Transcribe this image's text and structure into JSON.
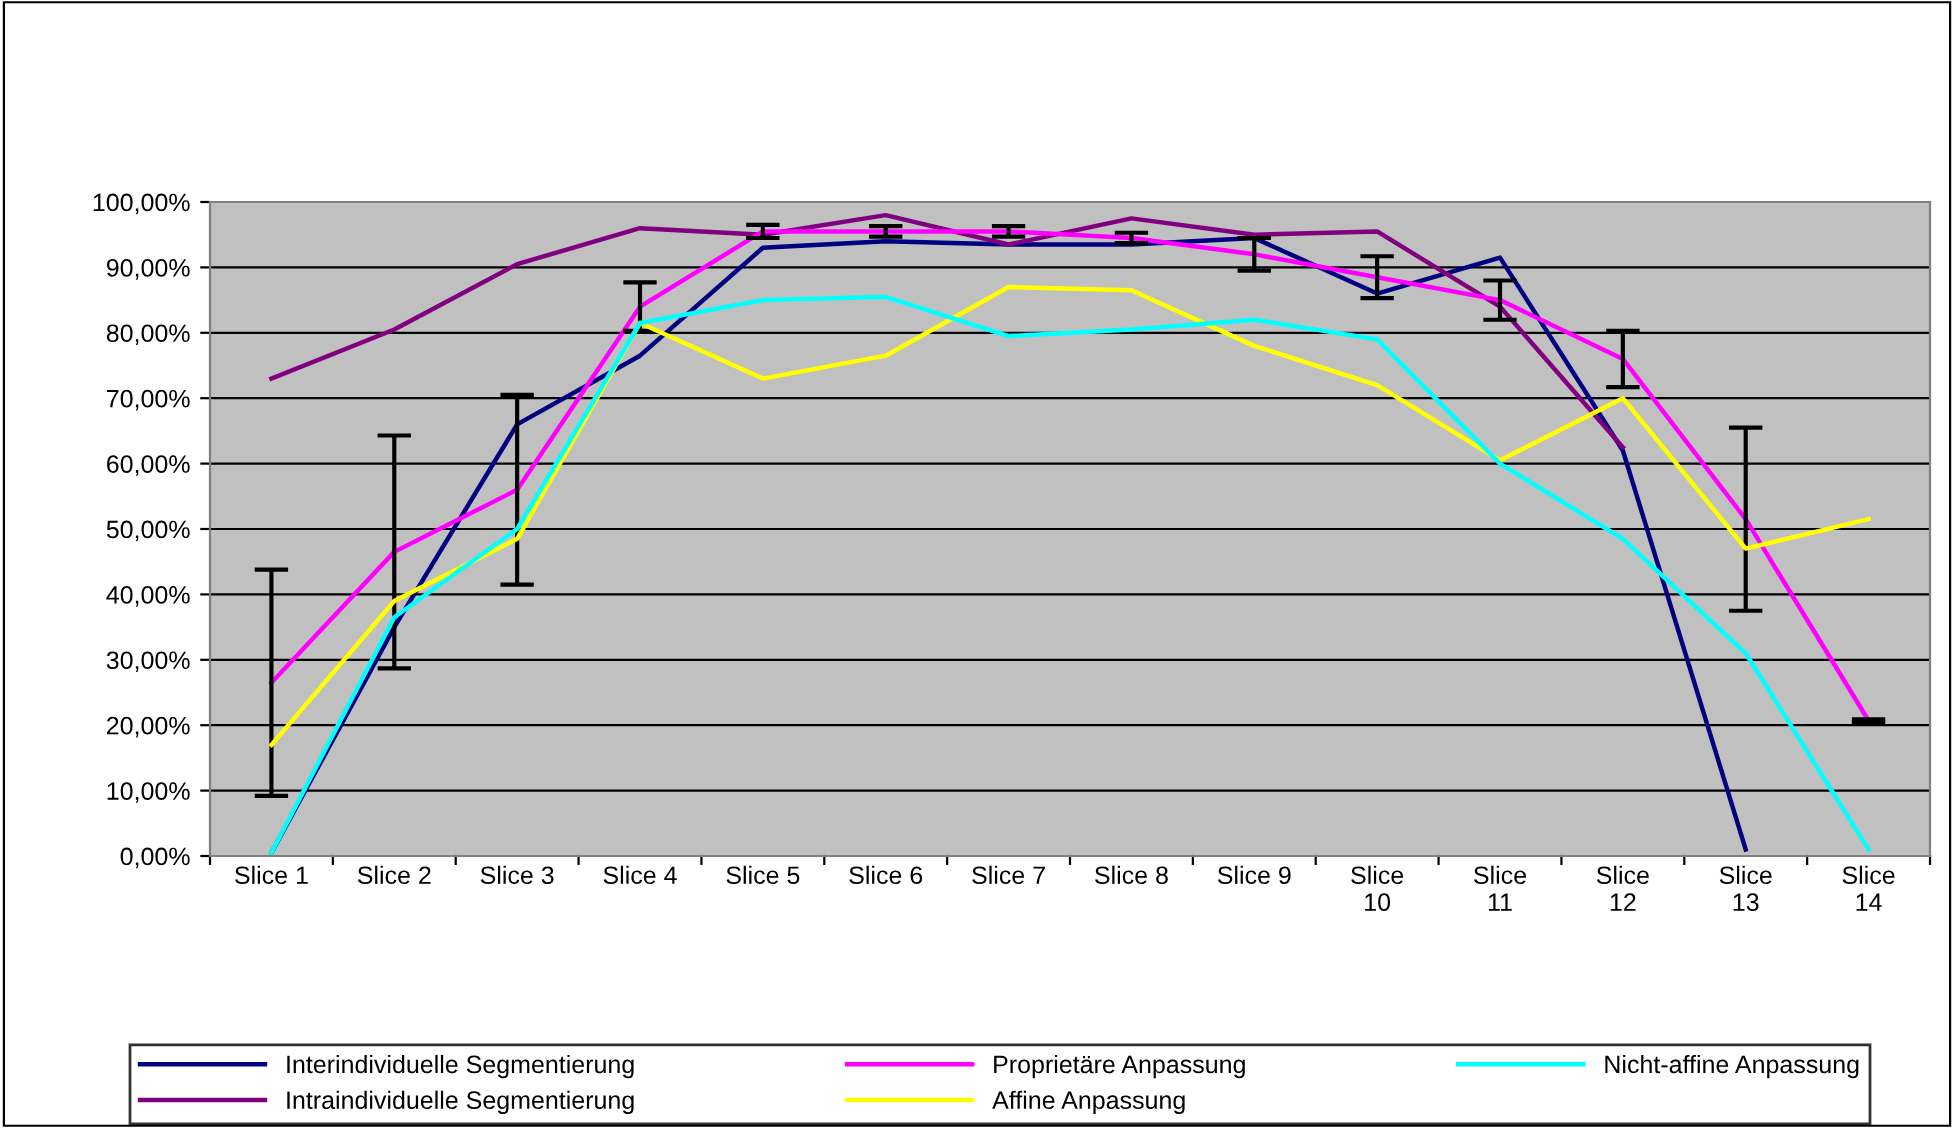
{
  "chart_data": {
    "type": "line",
    "categories": [
      "Slice 1",
      "Slice 2",
      "Slice 3",
      "Slice 4",
      "Slice 5",
      "Slice 6",
      "Slice 7",
      "Slice 8",
      "Slice 9",
      "Slice 10",
      "Slice 11",
      "Slice 12",
      "Slice 13",
      "Slice 14"
    ],
    "series": [
      {
        "name": "Interindividuelle Segmentierung",
        "color": "#000080",
        "values": [
          0.5,
          35,
          66,
          76.5,
          93,
          94,
          93.5,
          93.5,
          94.5,
          86,
          91.5,
          62,
          1,
          null
        ]
      },
      {
        "name": "Intraindividuelle Segmentierung",
        "color": "#800080",
        "values": [
          73,
          80.5,
          90.5,
          96,
          95,
          98,
          93.5,
          97.5,
          95,
          95.5,
          84,
          62.5,
          null,
          null
        ]
      },
      {
        "name": "Proprietäre Anpassung",
        "color": "#ff00ff",
        "values": [
          26.5,
          46.5,
          56,
          84,
          95.5,
          95.5,
          95.5,
          94.5,
          92,
          88.5,
          85,
          76,
          51.5,
          20.7
        ],
        "errors": [
          17.3,
          17.8,
          14.5,
          3.7,
          1,
          0.8,
          0.8,
          0.8,
          2.5,
          3.2,
          3,
          4.3,
          14,
          0.2
        ]
      },
      {
        "name": "Affine Anpassung",
        "color": "#ffff00",
        "values": [
          17,
          39,
          48.5,
          81.5,
          73,
          76.5,
          87,
          86.5,
          78,
          72,
          60.5,
          70,
          47,
          51.5
        ]
      },
      {
        "name": "Nicht-affine Anpassung",
        "color": "#00ffff",
        "values": [
          0.5,
          36.5,
          50,
          81.5,
          85,
          85.5,
          79.5,
          80.5,
          82,
          79,
          60,
          48.5,
          31,
          1
        ]
      }
    ],
    "ylim": [
      0,
      100
    ],
    "yticks": [
      {
        "value": 0,
        "label": "0,00%"
      },
      {
        "value": 10,
        "label": "10,00%"
      },
      {
        "value": 20,
        "label": "20,00%"
      },
      {
        "value": 30,
        "label": "30,00%"
      },
      {
        "value": 40,
        "label": "40,00%"
      },
      {
        "value": 50,
        "label": "50,00%"
      },
      {
        "value": 60,
        "label": "60,00%"
      },
      {
        "value": 70,
        "label": "70,00%"
      },
      {
        "value": 80,
        "label": "80,00%"
      },
      {
        "value": 90,
        "label": "90,00%"
      },
      {
        "value": 100,
        "label": "100,00%"
      }
    ],
    "grid": "y",
    "legend": "bottom",
    "marker": "none",
    "line_style": "solid"
  }
}
